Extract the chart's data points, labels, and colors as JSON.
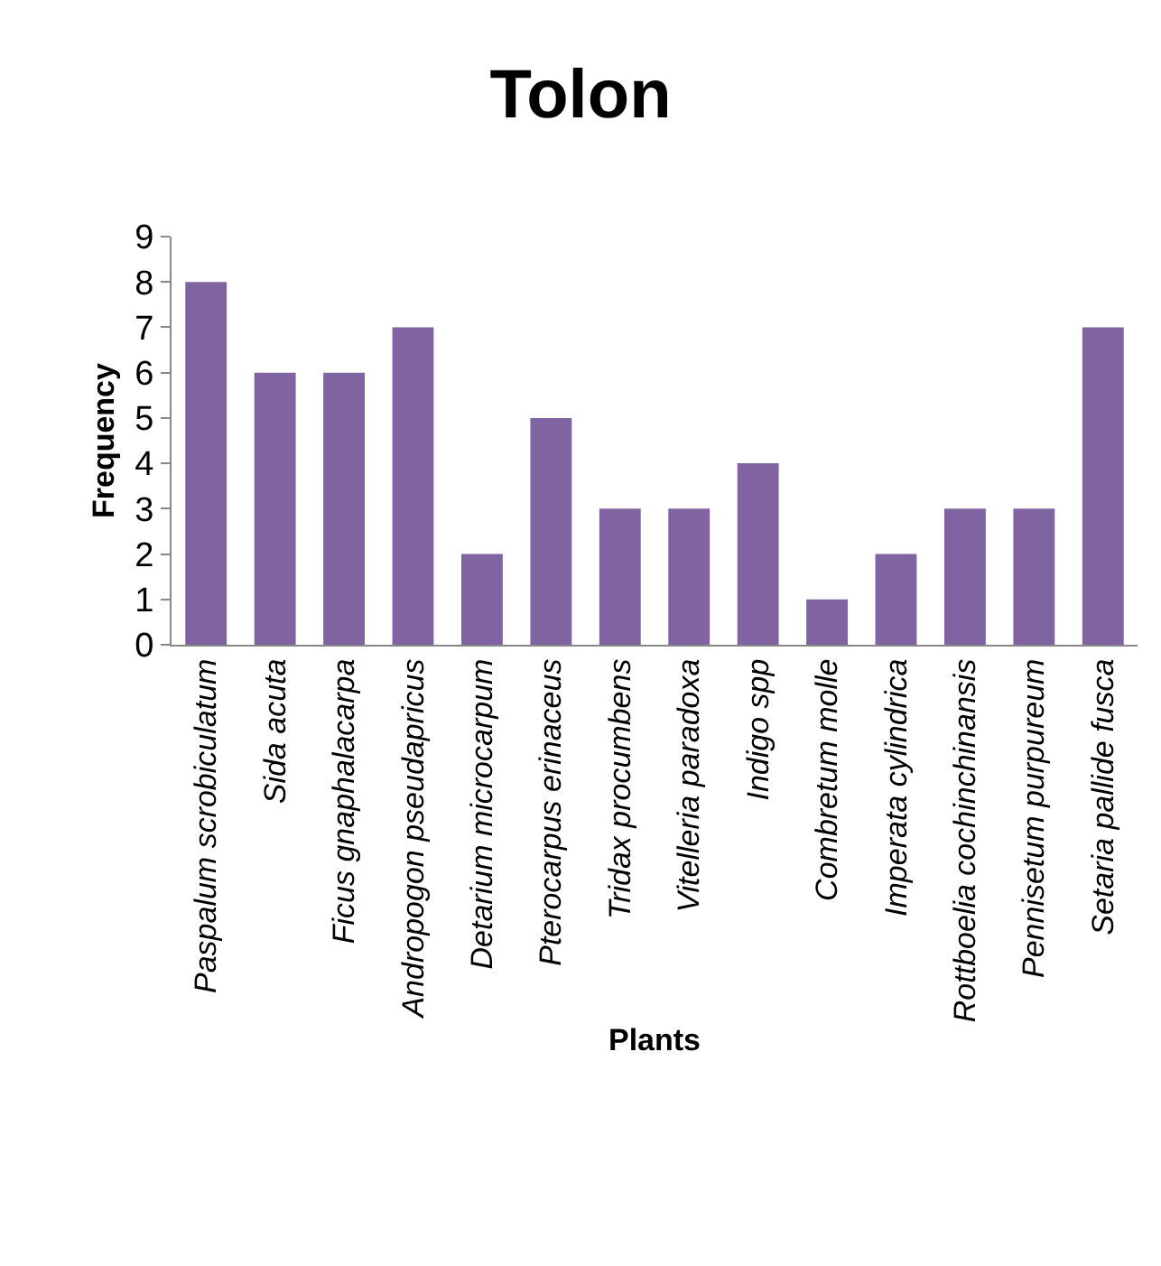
{
  "chart_data": {
    "type": "bar",
    "title": "Tolon",
    "xlabel": "Plants",
    "ylabel": "Frequency",
    "categories": [
      "Paspalum scrobiculatum",
      "Sida acuta",
      "Ficus gnaphalacarpa",
      "Andropogon pseudapricus",
      "Detarium microcarpum",
      "Pterocarpus erinaceus",
      "Tridax procumbens",
      "Vitelleria paradoxa",
      "Indigo spp",
      "Combretum molle",
      "Imperata cylindrica",
      "Rottboelia cochinchinansis",
      "Pennisetum purpureum",
      "Setaria pallide fusca"
    ],
    "values": [
      8,
      6,
      6,
      7,
      2,
      5,
      3,
      3,
      4,
      1,
      2,
      3,
      3,
      7
    ],
    "color": "#8064a2",
    "ylim": [
      0,
      9
    ],
    "yticks": [
      0,
      1,
      2,
      3,
      4,
      5,
      6,
      7,
      8,
      9
    ]
  }
}
